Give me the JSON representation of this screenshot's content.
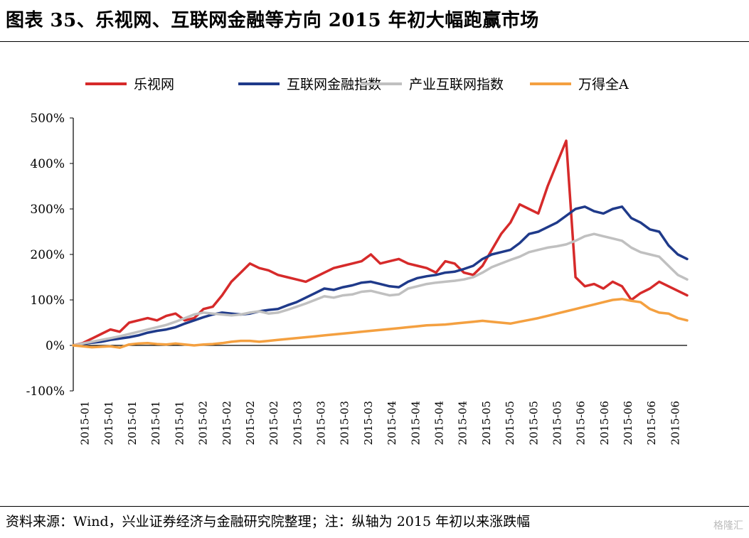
{
  "header": {
    "title": "图表 35、乐视网、互联网金融等方向 2015 年初大幅跑赢市场"
  },
  "footer": {
    "source": "资料来源：Wind，兴业证券经济与金融研究院整理；注：纵轴为 2015 年初以来涨跌幅",
    "watermark": "格隆汇"
  },
  "chart_data": {
    "type": "line",
    "title": "",
    "xlabel": "",
    "ylabel": "",
    "ylim": [
      -100,
      500
    ],
    "yticks": [
      "-100%",
      "0%",
      "100%",
      "200%",
      "300%",
      "400%",
      "500%"
    ],
    "ytick_values": [
      -100,
      0,
      100,
      200,
      300,
      400,
      500
    ],
    "x_tick_labels": [
      "2015-01",
      "2015-01",
      "2015-01",
      "2015-01",
      "2015-01",
      "2015-02",
      "2015-02",
      "2015-02",
      "2015-02",
      "2015-03",
      "2015-03",
      "2015-03",
      "2015-03",
      "2015-04",
      "2015-04",
      "2015-04",
      "2015-04",
      "2015-05",
      "2015-05",
      "2015-05",
      "2015-05",
      "2015-06",
      "2015-06",
      "2015-06",
      "2015-06",
      "2015-06"
    ],
    "legend_position": "top",
    "x_range": [
      0,
      132
    ],
    "series": [
      {
        "name": "乐视网",
        "color": "#d62a2a",
        "x": [
          0,
          2,
          4,
          6,
          8,
          10,
          12,
          14,
          16,
          18,
          20,
          22,
          24,
          26,
          28,
          30,
          32,
          34,
          36,
          38,
          40,
          42,
          44,
          46,
          48,
          50,
          52,
          54,
          56,
          58,
          60,
          62,
          64,
          66,
          68,
          70,
          72,
          74,
          76,
          78,
          80,
          82,
          84,
          86,
          88,
          90,
          92,
          94,
          96,
          98,
          100,
          102,
          104,
          106,
          108,
          110,
          112,
          114,
          116,
          118,
          120,
          122,
          124,
          126,
          128,
          130,
          132
        ],
        "values": [
          0,
          5,
          15,
          25,
          35,
          30,
          50,
          55,
          60,
          55,
          65,
          70,
          55,
          60,
          80,
          85,
          110,
          140,
          160,
          180,
          170,
          165,
          155,
          150,
          145,
          140,
          150,
          160,
          170,
          175,
          180,
          185,
          200,
          180,
          185,
          190,
          180,
          175,
          170,
          160,
          185,
          180,
          160,
          155,
          175,
          210,
          245,
          270,
          310,
          300,
          290,
          350,
          400,
          450,
          150,
          130,
          135,
          125,
          140,
          130,
          100,
          115,
          125,
          140,
          130,
          120,
          110
        ]
      },
      {
        "name": "互联网金融指数",
        "color": "#1f3a8a",
        "x": [
          0,
          2,
          4,
          6,
          8,
          10,
          12,
          14,
          16,
          18,
          20,
          22,
          24,
          26,
          28,
          30,
          32,
          34,
          36,
          38,
          40,
          42,
          44,
          46,
          48,
          50,
          52,
          54,
          56,
          58,
          60,
          62,
          64,
          66,
          68,
          70,
          72,
          74,
          76,
          78,
          80,
          82,
          84,
          86,
          88,
          90,
          92,
          94,
          96,
          98,
          100,
          102,
          104,
          106,
          108,
          110,
          112,
          114,
          116,
          118,
          120,
          122,
          124,
          126,
          128,
          130,
          132
        ],
        "values": [
          0,
          3,
          6,
          8,
          12,
          15,
          18,
          22,
          28,
          32,
          35,
          40,
          48,
          55,
          62,
          68,
          72,
          70,
          68,
          70,
          75,
          78,
          80,
          88,
          95,
          105,
          115,
          125,
          122,
          128,
          132,
          138,
          140,
          135,
          130,
          128,
          140,
          148,
          152,
          155,
          160,
          162,
          168,
          175,
          190,
          200,
          205,
          210,
          225,
          245,
          250,
          260,
          270,
          285,
          300,
          305,
          295,
          290,
          300,
          305,
          280,
          270,
          255,
          250,
          220,
          200,
          190
        ]
      },
      {
        "name": "产业互联网指数",
        "color": "#c0c0c0",
        "x": [
          0,
          2,
          4,
          6,
          8,
          10,
          12,
          14,
          16,
          18,
          20,
          22,
          24,
          26,
          28,
          30,
          32,
          34,
          36,
          38,
          40,
          42,
          44,
          46,
          48,
          50,
          52,
          54,
          56,
          58,
          60,
          62,
          64,
          66,
          68,
          70,
          72,
          74,
          76,
          78,
          80,
          82,
          84,
          86,
          88,
          90,
          92,
          94,
          96,
          98,
          100,
          102,
          104,
          106,
          108,
          110,
          112,
          114,
          116,
          118,
          120,
          122,
          124,
          126,
          128,
          130,
          132
        ],
        "values": [
          0,
          4,
          8,
          12,
          16,
          20,
          25,
          30,
          35,
          40,
          45,
          52,
          60,
          68,
          72,
          70,
          68,
          66,
          68,
          72,
          75,
          70,
          72,
          78,
          85,
          92,
          100,
          108,
          105,
          110,
          112,
          118,
          120,
          115,
          110,
          112,
          125,
          130,
          135,
          138,
          140,
          142,
          145,
          150,
          160,
          172,
          180,
          188,
          195,
          205,
          210,
          215,
          218,
          222,
          230,
          240,
          245,
          240,
          235,
          230,
          215,
          205,
          200,
          195,
          175,
          155,
          145
        ]
      },
      {
        "name": "万得全A",
        "color": "#f4a040",
        "x": [
          0,
          2,
          4,
          6,
          8,
          10,
          12,
          14,
          16,
          18,
          20,
          22,
          24,
          26,
          28,
          30,
          32,
          34,
          36,
          38,
          40,
          42,
          44,
          46,
          48,
          50,
          52,
          54,
          56,
          58,
          60,
          62,
          64,
          66,
          68,
          70,
          72,
          74,
          76,
          78,
          80,
          82,
          84,
          86,
          88,
          90,
          92,
          94,
          96,
          98,
          100,
          102,
          104,
          106,
          108,
          110,
          112,
          114,
          116,
          118,
          120,
          122,
          124,
          126,
          128,
          130,
          132
        ],
        "values": [
          0,
          -2,
          -4,
          -3,
          -2,
          -5,
          2,
          4,
          5,
          3,
          2,
          4,
          2,
          0,
          2,
          3,
          5,
          8,
          10,
          10,
          8,
          10,
          12,
          14,
          16,
          18,
          20,
          22,
          24,
          26,
          28,
          30,
          32,
          34,
          36,
          38,
          40,
          42,
          44,
          45,
          46,
          48,
          50,
          52,
          54,
          52,
          50,
          48,
          52,
          56,
          60,
          65,
          70,
          75,
          80,
          85,
          90,
          95,
          100,
          102,
          98,
          95,
          80,
          72,
          70,
          60,
          55
        ]
      }
    ]
  }
}
